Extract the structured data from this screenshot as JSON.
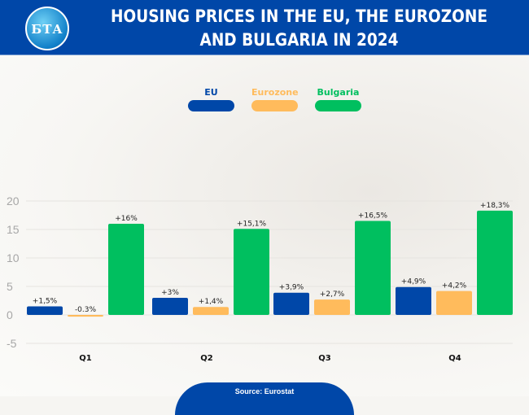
{
  "header": {
    "logo_text": "БТА",
    "title": "HOUSING PRICES IN THE EU, THE EUROZONE AND BULGARIA IN 2024"
  },
  "source": "Source: Eurostat",
  "chart_data": {
    "type": "bar",
    "title": "HOUSING PRICES IN THE EU, THE EUROZONE AND BULGARIA IN 2024",
    "categories": [
      "Q1",
      "Q2",
      "Q3",
      "Q4"
    ],
    "series": [
      {
        "name": "EU",
        "color": "#0047a8",
        "values": [
          1.5,
          3,
          3.9,
          4.9
        ],
        "labels": [
          "+1,5%",
          "+3%",
          "+3,9%",
          "+4,9%"
        ]
      },
      {
        "name": "Eurozone",
        "color": "#ffbb5c",
        "values": [
          -0.3,
          1.4,
          2.7,
          4.2
        ],
        "labels": [
          "-0.3%",
          "+1,4%",
          "+2,7%",
          "+4,2%"
        ]
      },
      {
        "name": "Bulgaria",
        "color": "#00bf5f",
        "values": [
          16,
          15.1,
          16.5,
          18.3
        ],
        "labels": [
          "+16%",
          "+15,1%",
          "+16,5%",
          "+18,3%"
        ]
      }
    ],
    "yticks": [
      20,
      15,
      10,
      5,
      0,
      -5
    ],
    "ylim": [
      -5,
      20
    ],
    "grid": true,
    "legend": "top-center"
  }
}
